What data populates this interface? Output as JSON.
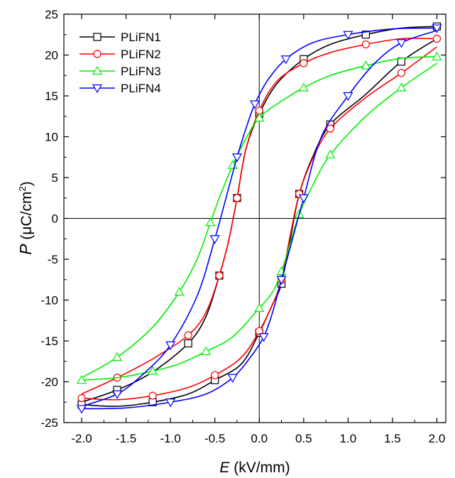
{
  "chart_data": {
    "type": "line",
    "title": "",
    "xlabel_symbol": "E",
    "xlabel_unit": " (kV/mm)",
    "ylabel_symbol": "P",
    "ylabel_unit": " (μC/cm",
    "ylabel_sup": "2",
    "ylabel_close": ")",
    "xlim": [
      -2.2,
      2.1
    ],
    "ylim": [
      -25,
      25
    ],
    "xticks": [
      -2.0,
      -1.5,
      -1.0,
      -0.5,
      0.0,
      0.5,
      1.0,
      1.5,
      2.0
    ],
    "xtick_labels": [
      "-2.0",
      "-1.5",
      "-1.0",
      "-0.5",
      "0.0",
      "0.5",
      "1.0",
      "1.5",
      "2.0"
    ],
    "yticks": [
      -25,
      -20,
      -15,
      -10,
      -5,
      0,
      5,
      10,
      15,
      20,
      25
    ],
    "ytick_labels": [
      "-25",
      "-20",
      "-15",
      "-10",
      "-5",
      "0",
      "5",
      "10",
      "15",
      "20",
      "25"
    ],
    "grid": false,
    "reference_lines": "x=0 and y=0",
    "legend_position": "top-left",
    "series": [
      {
        "name": "PLiFN1",
        "color": "#000000",
        "marker": "square",
        "upper_branch": {
          "x": [
            -2.0,
            -1.6,
            -1.2,
            -0.8,
            -0.6,
            -0.45,
            -0.35,
            -0.25,
            -0.15,
            0.0,
            0.2,
            0.5,
            0.8,
            1.2,
            1.6,
            2.0
          ],
          "y": [
            -22.5,
            -21.0,
            -18.8,
            -15.3,
            -12.0,
            -7.0,
            -3.0,
            2.5,
            8.5,
            12.8,
            16.5,
            19.5,
            21.3,
            22.5,
            23.3,
            23.5
          ]
        },
        "lower_branch": {
          "x": [
            2.0,
            1.6,
            1.2,
            0.8,
            0.6,
            0.45,
            0.35,
            0.25,
            0.15,
            0.0,
            -0.2,
            -0.5,
            -0.8,
            -1.2,
            -1.6,
            -2.0
          ],
          "y": [
            22.0,
            19.2,
            15.2,
            11.5,
            7.5,
            3.0,
            -2.5,
            -8.0,
            -10.5,
            -14.0,
            -17.8,
            -19.8,
            -21.5,
            -22.5,
            -23.0,
            -22.8
          ]
        }
      },
      {
        "name": "PLiFN2",
        "color": "#ff0000",
        "marker": "circle",
        "upper_branch": {
          "x": [
            -2.0,
            -1.6,
            -1.2,
            -0.8,
            -0.6,
            -0.45,
            -0.35,
            -0.25,
            -0.15,
            0.0,
            0.2,
            0.5,
            0.8,
            1.2,
            1.6,
            2.0
          ],
          "y": [
            -21.5,
            -19.5,
            -17.2,
            -14.3,
            -11.5,
            -7.0,
            -3.0,
            2.5,
            8.5,
            13.2,
            16.8,
            19.0,
            20.3,
            21.3,
            22.0,
            22.0
          ]
        },
        "lower_branch": {
          "x": [
            2.0,
            1.6,
            1.2,
            0.8,
            0.6,
            0.45,
            0.35,
            0.25,
            0.15,
            0.0,
            -0.2,
            -0.5,
            -0.8,
            -1.2,
            -1.6,
            -2.0
          ],
          "y": [
            21.0,
            17.8,
            14.8,
            11.0,
            7.3,
            3.0,
            -2.0,
            -7.5,
            -10.5,
            -13.8,
            -17.0,
            -19.2,
            -20.7,
            -21.7,
            -22.2,
            -22.0
          ]
        }
      },
      {
        "name": "PLiFN3",
        "color": "#00ee00",
        "marker": "triangle-up",
        "upper_branch": {
          "x": [
            -2.0,
            -1.6,
            -1.2,
            -0.9,
            -0.7,
            -0.55,
            -0.45,
            -0.3,
            -0.15,
            0.0,
            0.2,
            0.5,
            0.8,
            1.2,
            1.6,
            2.0
          ],
          "y": [
            -19.5,
            -17.0,
            -13.3,
            -9.0,
            -5.0,
            -0.5,
            2.5,
            6.5,
            9.8,
            12.3,
            14.0,
            16.0,
            17.5,
            18.7,
            19.6,
            19.8
          ]
        },
        "lower_branch": {
          "x": [
            2.0,
            1.6,
            1.2,
            0.8,
            0.6,
            0.45,
            0.35,
            0.25,
            0.15,
            0.0,
            -0.3,
            -0.6,
            -0.9,
            -1.2,
            -1.6,
            -2.0
          ],
          "y": [
            19.0,
            16.0,
            12.5,
            7.8,
            4.0,
            0.5,
            -3.0,
            -6.5,
            -9.0,
            -11.0,
            -14.5,
            -16.3,
            -17.8,
            -18.7,
            -19.5,
            -19.8
          ]
        }
      },
      {
        "name": "PLiFN4",
        "color": "#0000ff",
        "marker": "triangle-down",
        "upper_branch": {
          "x": [
            -2.0,
            -1.6,
            -1.3,
            -1.0,
            -0.7,
            -0.5,
            -0.35,
            -0.25,
            -0.15,
            -0.05,
            0.1,
            0.3,
            0.6,
            1.0,
            1.5,
            2.0
          ],
          "y": [
            -23.0,
            -21.5,
            -19.0,
            -15.5,
            -9.5,
            -2.5,
            3.5,
            7.5,
            11.0,
            14.0,
            17.0,
            19.5,
            21.5,
            22.5,
            23.2,
            23.3
          ]
        },
        "lower_branch": {
          "x": [
            2.0,
            1.6,
            1.3,
            1.0,
            0.7,
            0.5,
            0.35,
            0.25,
            0.15,
            0.05,
            -0.1,
            -0.3,
            -0.6,
            -1.0,
            -1.5,
            -2.0
          ],
          "y": [
            23.0,
            21.5,
            19.0,
            15.0,
            10.0,
            2.5,
            -3.5,
            -7.5,
            -11.5,
            -14.5,
            -17.0,
            -19.5,
            -21.5,
            -22.5,
            -23.2,
            -23.3
          ]
        }
      }
    ]
  }
}
